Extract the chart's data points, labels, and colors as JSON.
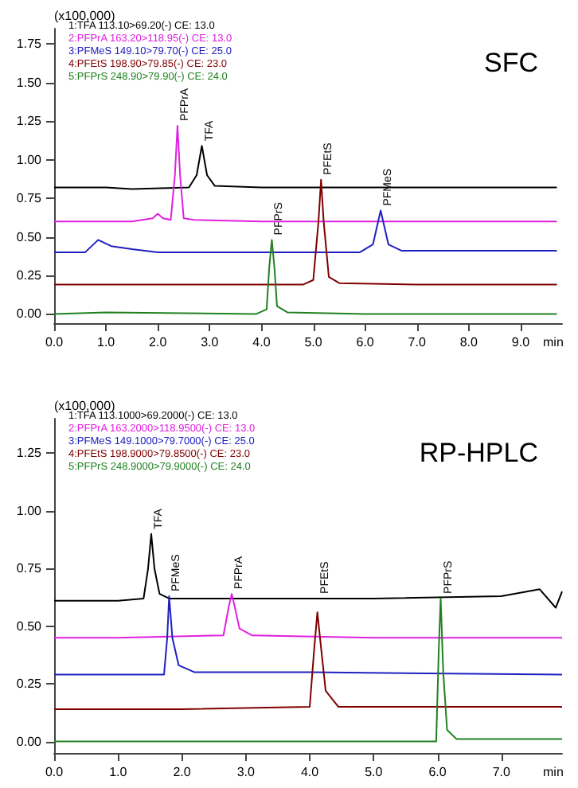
{
  "chart_data": [
    {
      "type": "line",
      "title": "SFC",
      "xlabel": "min",
      "ylabel": "(x100,000)",
      "xlim": [
        0,
        9.8
      ],
      "ylim": [
        -0.06,
        1.85
      ],
      "grid": false,
      "marker": "none",
      "legend": "top left",
      "xticks": [
        {
          "value": 0,
          "label": "0.0"
        },
        {
          "value": 1,
          "label": "1.0"
        },
        {
          "value": 2,
          "label": "2.0"
        },
        {
          "value": 3,
          "label": "3.0"
        },
        {
          "value": 4,
          "label": "4.0"
        },
        {
          "value": 5,
          "label": "5.0"
        },
        {
          "value": 6,
          "label": "6.0"
        },
        {
          "value": 7,
          "label": "7.0"
        },
        {
          "value": 8,
          "label": "8.0"
        },
        {
          "value": 9,
          "label": "9.0"
        }
      ],
      "yticks": [
        {
          "value": 0,
          "label": "0.00"
        },
        {
          "value": 0.25,
          "label": "0.25"
        },
        {
          "value": 0.5,
          "label": "0.50"
        },
        {
          "value": 0.75,
          "label": "0.75"
        },
        {
          "value": 1,
          "label": "1.00"
        },
        {
          "value": 1.25,
          "label": "1.25"
        },
        {
          "value": 1.5,
          "label": "1.50"
        },
        {
          "value": 1.75,
          "label": "1.75"
        }
      ],
      "series": [
        {
          "name": "1:TFA 113.10>69.20(-) CE: 13.0",
          "color": "#000000",
          "x": [
            0,
            1.0,
            1.5,
            2.6,
            2.75,
            2.85,
            2.95,
            3.1,
            4.0,
            6.0,
            8.0,
            9.7
          ],
          "values": [
            0.82,
            0.82,
            0.81,
            0.82,
            0.9,
            1.09,
            0.9,
            0.83,
            0.82,
            0.82,
            0.82,
            0.82
          ]
        },
        {
          "name": "2:PFPrA 163.20>118.95(-) CE: 13.0",
          "color": "#e020e0",
          "x": [
            0,
            1.5,
            1.9,
            2.0,
            2.1,
            2.25,
            2.33,
            2.38,
            2.43,
            2.5,
            2.7,
            4.0,
            6.0,
            9.7
          ],
          "values": [
            0.6,
            0.6,
            0.62,
            0.65,
            0.62,
            0.61,
            0.9,
            1.22,
            0.9,
            0.62,
            0.61,
            0.6,
            0.6,
            0.6
          ]
        },
        {
          "name": "3:PFMeS 149.10>79.70(-) CE: 25.0",
          "color": "#2020c0",
          "x": [
            0,
            0.6,
            0.85,
            1.1,
            1.5,
            2.0,
            5.9,
            6.15,
            6.3,
            6.45,
            6.7,
            8.0,
            9.7
          ],
          "values": [
            0.4,
            0.4,
            0.48,
            0.44,
            0.42,
            0.4,
            0.4,
            0.45,
            0.67,
            0.45,
            0.41,
            0.41,
            0.41
          ]
        },
        {
          "name": "4:PFEtS 198.90>79.85(-) CE: 23.0",
          "color": "#800000",
          "x": [
            0,
            2.0,
            4.8,
            5.0,
            5.1,
            5.15,
            5.2,
            5.3,
            5.5,
            7.0,
            9.7
          ],
          "values": [
            0.19,
            0.19,
            0.19,
            0.22,
            0.6,
            0.87,
            0.6,
            0.24,
            0.2,
            0.19,
            0.19
          ]
        },
        {
          "name": "5:PFPrS 248.90>79.90(-) CE: 24.0",
          "color": "#208020",
          "x": [
            0,
            1.0,
            3.9,
            4.1,
            4.15,
            4.2,
            4.25,
            4.3,
            4.5,
            6.0,
            9.7
          ],
          "values": [
            0,
            0.01,
            0,
            0.03,
            0.3,
            0.48,
            0.3,
            0.05,
            0.01,
            0,
            0
          ]
        }
      ],
      "annotations": [
        {
          "text": "PFPrA",
          "x": 2.38,
          "y": 1.22
        },
        {
          "text": "TFA",
          "x": 2.85,
          "y": 1.09
        },
        {
          "text": "PFEtS",
          "x": 5.15,
          "y": 0.87
        },
        {
          "text": "PFMeS",
          "x": 6.3,
          "y": 0.67
        },
        {
          "text": "PFPrS",
          "x": 4.2,
          "y": 0.48
        }
      ]
    },
    {
      "type": "line",
      "title": "RP-HPLC",
      "xlabel": "min",
      "ylabel": "(x100,000)",
      "xlim": [
        0,
        7.95
      ],
      "ylim": [
        -0.05,
        1.4
      ],
      "grid": false,
      "marker": "none",
      "legend": "top left",
      "xticks": [
        {
          "value": 0,
          "label": "0.0"
        },
        {
          "value": 1,
          "label": "1.0"
        },
        {
          "value": 2,
          "label": "2.0"
        },
        {
          "value": 3,
          "label": "3.0"
        },
        {
          "value": 4,
          "label": "4.0"
        },
        {
          "value": 5,
          "label": "5.0"
        },
        {
          "value": 6,
          "label": "6.0"
        },
        {
          "value": 7,
          "label": "7.0"
        }
      ],
      "yticks": [
        {
          "value": 0,
          "label": "0.00"
        },
        {
          "value": 0.25,
          "label": "0.25"
        },
        {
          "value": 0.5,
          "label": "0.50"
        },
        {
          "value": 0.75,
          "label": "0.75"
        },
        {
          "value": 1,
          "label": "1.00"
        },
        {
          "value": 1.25,
          "label": "1.25"
        }
      ],
      "series": [
        {
          "name": "1:TFA 113.1000>69.2000(-) CE: 13.0",
          "color": "#000000",
          "x": [
            0,
            1.0,
            1.4,
            1.47,
            1.52,
            1.57,
            1.65,
            1.8,
            3.0,
            5.0,
            7.0,
            7.6,
            7.85,
            7.95
          ],
          "values": [
            0.61,
            0.61,
            0.62,
            0.75,
            0.9,
            0.75,
            0.64,
            0.62,
            0.62,
            0.62,
            0.63,
            0.66,
            0.58,
            0.65
          ]
        },
        {
          "name": "2:PFPrA 163.2000>118.9500(-) CE: 13.0",
          "color": "#e020e0",
          "x": [
            0,
            1.0,
            2.65,
            2.73,
            2.78,
            2.83,
            2.9,
            3.1,
            5.0,
            7.95
          ],
          "values": [
            0.45,
            0.45,
            0.46,
            0.58,
            0.64,
            0.58,
            0.49,
            0.46,
            0.45,
            0.45
          ]
        },
        {
          "name": "3:PFMeS 149.1000>79.7000(-) CE: 25.0",
          "color": "#2020c0",
          "x": [
            0,
            1.0,
            1.72,
            1.77,
            1.8,
            1.85,
            1.95,
            2.2,
            4.0,
            7.95
          ],
          "values": [
            0.29,
            0.29,
            0.29,
            0.45,
            0.63,
            0.45,
            0.33,
            0.3,
            0.3,
            0.29
          ]
        },
        {
          "name": "4:PFEtS 198.9000>79.8500(-) CE: 23.0",
          "color": "#800000",
          "x": [
            0,
            2.0,
            4.0,
            4.07,
            4.12,
            4.18,
            4.25,
            4.45,
            6.0,
            7.95
          ],
          "values": [
            0.14,
            0.14,
            0.15,
            0.4,
            0.56,
            0.4,
            0.22,
            0.15,
            0.15,
            0.15
          ]
        },
        {
          "name": "5:PFPrS 248.9000>79.9000(-) CE: 24.0",
          "color": "#208020",
          "x": [
            0,
            2.0,
            5.98,
            6.02,
            6.05,
            6.09,
            6.15,
            6.3,
            7.0,
            7.95
          ],
          "values": [
            0,
            0,
            0,
            0.4,
            0.62,
            0.3,
            0.05,
            0.01,
            0.01,
            0.01
          ]
        }
      ],
      "annotations": [
        {
          "text": "TFA",
          "x": 1.52,
          "y": 0.9
        },
        {
          "text": "PFMeS",
          "x": 1.8,
          "y": 0.63
        },
        {
          "text": "PFPrA",
          "x": 2.78,
          "y": 0.64
        },
        {
          "text": "PFEtS",
          "x": 4.12,
          "y": 0.62
        },
        {
          "text": "PFPrS",
          "x": 6.05,
          "y": 0.62
        }
      ]
    }
  ]
}
